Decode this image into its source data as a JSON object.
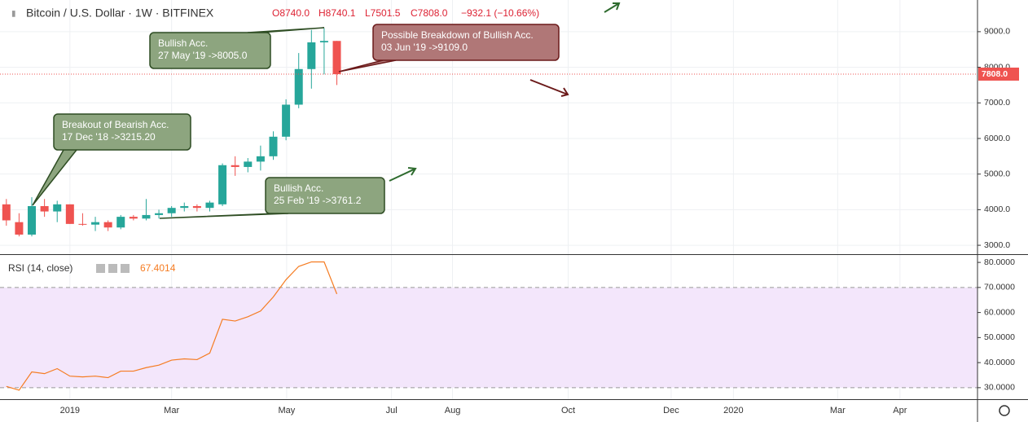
{
  "chart_data": [
    {
      "type": "candlestick",
      "header": [
        "Bitcoin / U.S. Dollar · 1W · BITFINEX",
        "O8740.0",
        "H8740.1",
        "L7501.5",
        "C7808.0",
        "−932.1 (−10.66%)"
      ],
      "up_color": "#26a69a",
      "down_color": "#ef5350",
      "open": [
        4150,
        3650,
        3300,
        4100,
        3950,
        4150,
        3600,
        3580,
        3650,
        3500,
        3800,
        3750,
        3850,
        3900,
        4050,
        4100,
        4050,
        4150,
        5250,
        5200,
        5350,
        5500,
        6050,
        6950,
        7950,
        8700,
        8740
      ],
      "high": [
        4300,
        3900,
        4350,
        4300,
        4250,
        4150,
        3900,
        3800,
        3700,
        3850,
        3850,
        4300,
        4000,
        4100,
        4200,
        4150,
        4250,
        5300,
        5500,
        5450,
        5800,
        6200,
        7100,
        8400,
        9050,
        9100,
        8740.1
      ],
      "low": [
        3550,
        3250,
        3250,
        3800,
        3650,
        3600,
        3550,
        3400,
        3400,
        3450,
        3700,
        3700,
        3750,
        3800,
        3950,
        3950,
        3950,
        4100,
        4950,
        5050,
        5100,
        5400,
        5950,
        6850,
        7400,
        7800,
        7501.5
      ],
      "close": [
        3700,
        3300,
        4100,
        3950,
        4150,
        3600,
        3580,
        3650,
        3500,
        3800,
        3750,
        3850,
        3900,
        4050,
        4100,
        4050,
        4200,
        5250,
        5200,
        5350,
        5500,
        6050,
        6950,
        7950,
        8700,
        8740,
        7808
      ],
      "ylim": [
        2750,
        9890
      ],
      "yticks": [
        {
          "value": 3000,
          "label": "3000.0"
        },
        {
          "value": 4000,
          "label": "4000.0"
        },
        {
          "value": 5000,
          "label": "5000.0"
        },
        {
          "value": 6000,
          "label": "6000.0"
        },
        {
          "value": 7000,
          "label": "7000.0"
        },
        {
          "value": 8000,
          "label": "8000.0"
        },
        {
          "value": 9000,
          "label": "9000.0"
        }
      ],
      "last_price": {
        "value": 7808,
        "label": "7808.0"
      },
      "xlim": [
        -0.5,
        76.4
      ],
      "xticks": [
        {
          "value": 5.0,
          "label": "2019"
        },
        {
          "value": 13.0,
          "label": "Mar"
        },
        {
          "value": 22.05,
          "label": "May"
        },
        {
          "value": 30.3,
          "label": "Jul"
        },
        {
          "value": 35.1,
          "label": "Aug"
        },
        {
          "value": 44.2,
          "label": "Oct"
        },
        {
          "value": 52.3,
          "label": "Dec"
        },
        {
          "value": 57.2,
          "label": "2020"
        },
        {
          "value": 65.4,
          "label": "Mar"
        },
        {
          "value": 70.3,
          "label": "Apr"
        }
      ],
      "annotations": [
        {
          "lines": [
            "Bullish Acc.",
            "27 May '19 ->8005.0"
          ],
          "color": "#8da57f"
        },
        {
          "lines": [
            "Possible Breakdown of Bullish Acc.",
            "03 Jun '19 ->9109.0"
          ],
          "color": "#b07777"
        },
        {
          "lines": [
            "Breakout of Bearish Acc.",
            "17 Dec '18 ->3215.20"
          ],
          "color": "#8da57f"
        },
        {
          "lines": [
            "Bullish Acc.",
            "25 Feb '19 ->3761.2"
          ],
          "color": "#8da57f"
        }
      ]
    },
    {
      "type": "line",
      "title": "RSI (14, close)",
      "series": [
        {
          "name": "RSI",
          "color": "#f57c22",
          "values": [
            30.5,
            29,
            36.3,
            35.6,
            37.6,
            34.6,
            34.3,
            34.6,
            34,
            36.6,
            36.6,
            38,
            39,
            41,
            41.5,
            41.2,
            43.8,
            57.3,
            56.6,
            58.3,
            60.6,
            66.2,
            73.1,
            78.4,
            80.2,
            80.2,
            67.4014
          ]
        }
      ],
      "last_label": "67.4014",
      "band": [
        30,
        70
      ],
      "ylim": [
        25.4,
        82.96
      ],
      "yticks": [
        {
          "value": 30,
          "label": "30.0000"
        },
        {
          "value": 40,
          "label": "40.0000"
        },
        {
          "value": 50,
          "label": "50.0000"
        },
        {
          "value": 60,
          "label": "60.0000"
        },
        {
          "value": 70,
          "label": "70.0000"
        },
        {
          "value": 80,
          "label": "80.0000"
        }
      ]
    }
  ]
}
